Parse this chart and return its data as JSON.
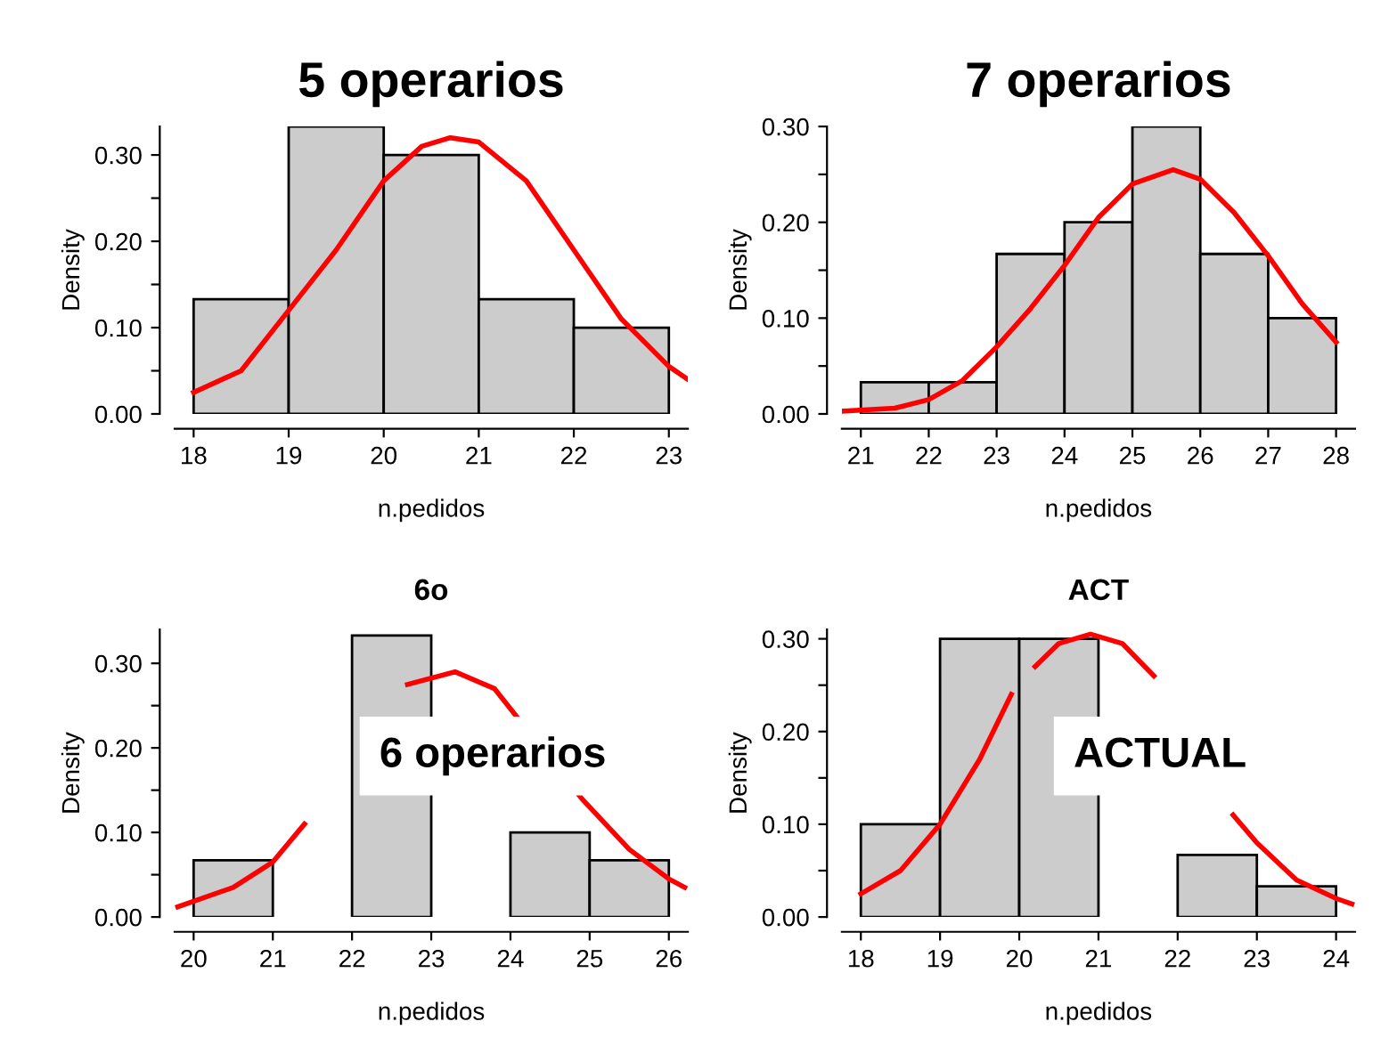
{
  "chart_data": [
    {
      "type": "histogram",
      "title": "5 operarios",
      "xlabel": "n.pedidos",
      "ylabel": "Density",
      "color": "#cccccc",
      "bins": [
        18,
        19,
        20,
        21,
        22,
        23
      ],
      "values": [
        0.133,
        0.333,
        0.3,
        0.133,
        0.1
      ],
      "series": [
        {
          "type": "line",
          "color": "#ff0000",
          "x": [
            18,
            18.5,
            19,
            19.5,
            20,
            20.4,
            20.7,
            21,
            21.5,
            22,
            22.5,
            23,
            23.2
          ],
          "values": [
            0.025,
            0.05,
            0.12,
            0.19,
            0.27,
            0.31,
            0.32,
            0.315,
            0.27,
            0.19,
            0.11,
            0.055,
            0.04
          ]
        }
      ],
      "xlim": [
        17.8,
        23.2
      ],
      "ylim": [
        0,
        0.333
      ],
      "xticks": [
        18,
        19,
        20,
        21,
        22,
        23
      ],
      "yticks": [
        {
          "value": 0,
          "label": "0.00"
        },
        {
          "value": 0.05,
          "label": null
        },
        {
          "value": 0.1,
          "label": "0.10"
        },
        {
          "value": 0.15,
          "label": null
        },
        {
          "value": 0.2,
          "label": "0.20"
        },
        {
          "value": 0.25,
          "label": null
        },
        {
          "value": 0.3,
          "label": "0.30"
        }
      ]
    },
    {
      "type": "histogram",
      "title": "7 operarios",
      "xlabel": "n.pedidos",
      "ylabel": "Density",
      "color": "#cccccc",
      "bins": [
        21,
        22,
        23,
        24,
        25,
        26,
        27,
        28
      ],
      "values": [
        0.033,
        0.033,
        0.167,
        0.2,
        0.3,
        0.167,
        0.1
      ],
      "series": [
        {
          "type": "line",
          "color": "#ff0000",
          "x": [
            20.75,
            21.5,
            22,
            22.5,
            23,
            23.5,
            24,
            24.5,
            25,
            25.6,
            26,
            26.5,
            27,
            27.5,
            28
          ],
          "values": [
            0.003,
            0.006,
            0.015,
            0.035,
            0.07,
            0.11,
            0.155,
            0.205,
            0.24,
            0.255,
            0.245,
            0.21,
            0.165,
            0.115,
            0.075
          ]
        }
      ],
      "xlim": [
        20.72,
        28.28
      ],
      "ylim": [
        0,
        0.3
      ],
      "xticks": [
        21,
        22,
        23,
        24,
        25,
        26,
        27,
        28
      ],
      "yticks": [
        {
          "value": 0,
          "label": "0.00"
        },
        {
          "value": 0.05,
          "label": null
        },
        {
          "value": 0.1,
          "label": "0.10"
        },
        {
          "value": 0.15,
          "label": null
        },
        {
          "value": 0.2,
          "label": "0.20"
        },
        {
          "value": 0.25,
          "label": null
        },
        {
          "value": 0.3,
          "label": "0.30"
        }
      ]
    },
    {
      "type": "histogram",
      "title": "6o",
      "xlabel": "n.pedidos",
      "ylabel": "Density",
      "color": "#cccccc",
      "annotations": [
        "6 operarios"
      ],
      "bins": [
        20,
        21,
        22,
        23,
        24,
        25,
        26
      ],
      "values": [
        0.067,
        null,
        0.333,
        null,
        0.1,
        0.067
      ],
      "series": [
        {
          "type": "line",
          "color": "#ff0000",
          "x": [
            19.8,
            20.5,
            21,
            21.4,
            21.8,
            22.7,
            23.3,
            23.8,
            24.9,
            25.5,
            26,
            26.2
          ],
          "values": [
            0.012,
            0.035,
            0.065,
            0.11,
            null,
            0.275,
            0.29,
            0.27,
            0.14,
            0.08,
            0.045,
            0.035
          ]
        }
      ],
      "xlim": [
        19.76,
        26.24
      ],
      "ylim": [
        0,
        0.34
      ],
      "xticks": [
        20,
        21,
        22,
        23,
        24,
        25,
        26
      ],
      "yticks": [
        {
          "value": 0,
          "label": "0.00"
        },
        {
          "value": 0.05,
          "label": null
        },
        {
          "value": 0.1,
          "label": "0.10"
        },
        {
          "value": 0.15,
          "label": null
        },
        {
          "value": 0.2,
          "label": "0.20"
        },
        {
          "value": 0.25,
          "label": null
        },
        {
          "value": 0.3,
          "label": "0.30"
        }
      ]
    },
    {
      "type": "histogram",
      "title": "ACT",
      "xlabel": "n.pedidos",
      "ylabel": "Density",
      "color": "#cccccc",
      "annotations": [
        "ACTUAL"
      ],
      "bins": [
        18,
        19,
        20,
        21,
        22,
        23,
        24
      ],
      "values": [
        0.1,
        0.3,
        0.3,
        null,
        0.067,
        0.033
      ],
      "series": [
        {
          "type": "line",
          "color": "#ff0000",
          "x": [
            18,
            18.5,
            19,
            19.5,
            19.9,
            20.0,
            20.2,
            20.5,
            20.9,
            21.3,
            21.7,
            22.2,
            22.7,
            23,
            23.5,
            24,
            24.2
          ],
          "values": [
            0.025,
            0.05,
            0.1,
            0.17,
            0.24,
            null,
            0.27,
            0.295,
            0.305,
            0.295,
            0.26,
            null,
            0.11,
            0.08,
            0.04,
            0.02,
            0.014
          ]
        }
      ],
      "xlim": [
        17.76,
        24.24
      ],
      "ylim": [
        0,
        0.31
      ],
      "xticks": [
        18,
        19,
        20,
        21,
        22,
        23,
        24
      ],
      "yticks": [
        {
          "value": 0,
          "label": "0.00"
        },
        {
          "value": 0.05,
          "label": null
        },
        {
          "value": 0.1,
          "label": "0.10"
        },
        {
          "value": 0.15,
          "label": null
        },
        {
          "value": 0.2,
          "label": "0.20"
        },
        {
          "value": 0.25,
          "label": null
        },
        {
          "value": 0.3,
          "label": "0.30"
        }
      ]
    }
  ]
}
